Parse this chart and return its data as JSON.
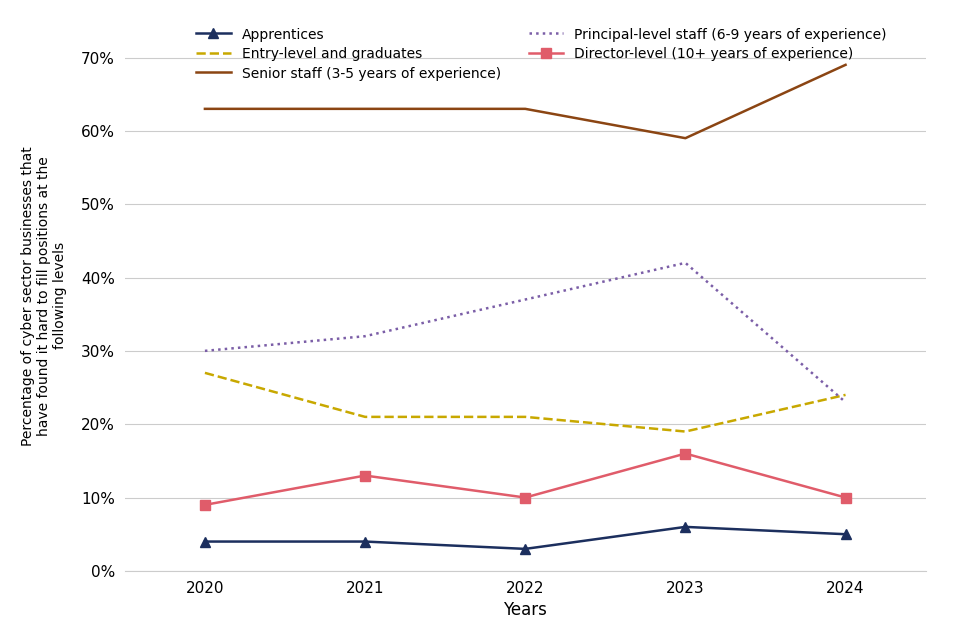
{
  "years": [
    2020,
    2021,
    2022,
    2023,
    2024
  ],
  "series": {
    "Apprentices": {
      "values": [
        4,
        4,
        3,
        6,
        5
      ],
      "color": "#1c2f5e",
      "linestyle": "solid",
      "marker": "^",
      "linewidth": 1.8
    },
    "Entry-level and graduates": {
      "values": [
        27,
        21,
        21,
        19,
        24
      ],
      "color": "#c8a800",
      "linestyle": "dashed",
      "marker": null,
      "linewidth": 1.8
    },
    "Senior staff (3-5 years of experience)": {
      "values": [
        63,
        63,
        63,
        59,
        69
      ],
      "color": "#8b4513",
      "linestyle": "solid",
      "marker": null,
      "linewidth": 1.8
    },
    "Principal-level staff (6-9 years of experience)": {
      "values": [
        30,
        32,
        37,
        42,
        23
      ],
      "color": "#7b5ea7",
      "linestyle": "dotted",
      "marker": null,
      "linewidth": 1.8
    },
    "Director-level (10+ years of experience)": {
      "values": [
        9,
        13,
        10,
        16,
        10
      ],
      "color": "#e05c6a",
      "linestyle": "solid",
      "marker": "s",
      "linewidth": 1.8
    }
  },
  "ylabel": "Percentage of cyber sector businesses that\nhave found it hard to fill positions at the\nfollowing levels",
  "xlabel": "Years",
  "ylim": [
    0,
    75
  ],
  "yticks": [
    0,
    10,
    20,
    30,
    40,
    50,
    60,
    70
  ],
  "ytick_labels": [
    "0%",
    "10%",
    "20%",
    "30%",
    "40%",
    "50%",
    "60%",
    "70%"
  ],
  "background_color": "#ffffff",
  "grid_color": "#cccccc",
  "legend_col1": [
    "Apprentices",
    "Senior staff (3-5 years of experience)",
    "Director-level (10+ years of experience)"
  ],
  "legend_col2": [
    "Entry-level and graduates",
    "Principal-level staff (6-9 years of experience)"
  ],
  "legend_order": [
    "Apprentices",
    "Entry-level and graduates",
    "Senior staff (3-5 years of experience)",
    "Principal-level staff (6-9 years of experience)",
    "Director-level (10+ years of experience)"
  ]
}
